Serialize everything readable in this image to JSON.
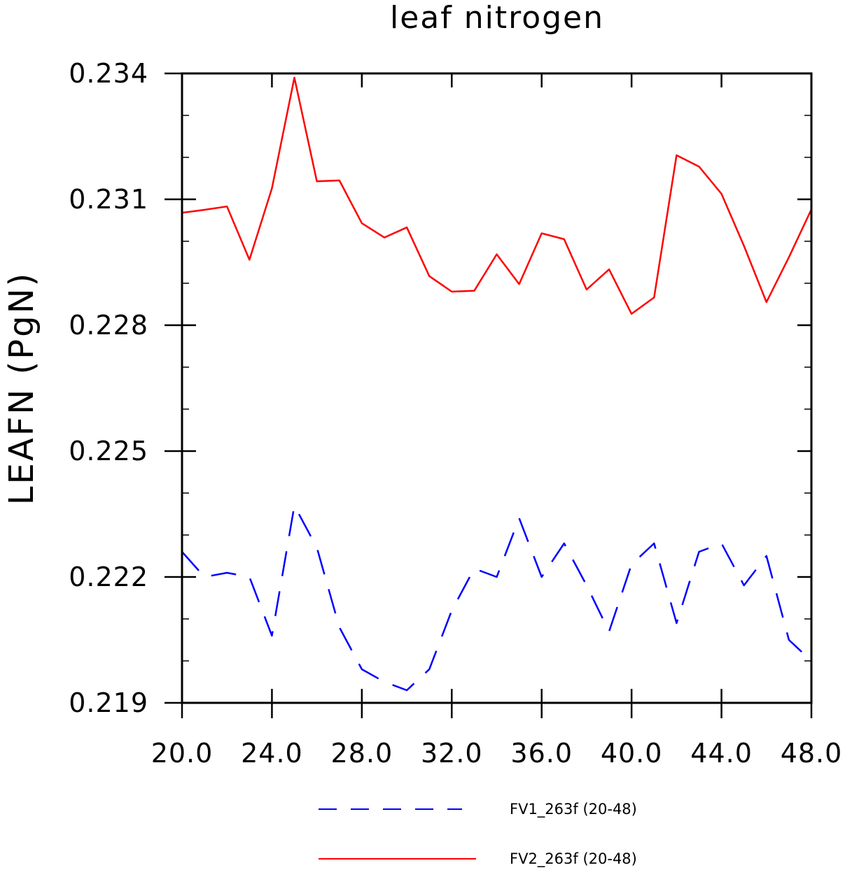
{
  "chart_data": {
    "type": "line",
    "title": "leaf nitrogen",
    "xlabel": "",
    "ylabel": "LEAFN  (PgN)",
    "xlim": [
      20,
      48
    ],
    "ylim": [
      0.219,
      0.234
    ],
    "x_ticks": [
      20,
      24,
      28,
      32,
      36,
      40,
      44,
      48
    ],
    "x_tick_labels": [
      "20.0",
      "24.0",
      "28.0",
      "32.0",
      "36.0",
      "40.0",
      "44.0",
      "48.0"
    ],
    "y_ticks": [
      0.219,
      0.222,
      0.225,
      0.228,
      0.231,
      0.234
    ],
    "y_tick_labels": [
      "0.219",
      "0.222",
      "0.225",
      "0.228",
      "0.231",
      "0.234"
    ],
    "grid": false,
    "legend_position": "bottom",
    "x": [
      20,
      21,
      22,
      23,
      24,
      25,
      26,
      27,
      28,
      29,
      30,
      31,
      32,
      33,
      34,
      35,
      36,
      37,
      38,
      39,
      40,
      41,
      42,
      43,
      44,
      45,
      46,
      47,
      48
    ],
    "series": [
      {
        "name": "FV1_263f (20-48)",
        "color": "#0000ff",
        "dash": "dashed",
        "values": [
          0.2226,
          0.222,
          0.2221,
          0.222,
          0.2206,
          0.2237,
          0.2227,
          0.2208,
          0.2198,
          0.2195,
          0.2193,
          0.2198,
          0.2212,
          0.2222,
          0.222,
          0.2234,
          0.222,
          0.2228,
          0.2218,
          0.2207,
          0.2223,
          0.2228,
          0.2209,
          0.2226,
          0.2228,
          0.2218,
          0.2225,
          0.2205,
          0.22
        ]
      },
      {
        "name": "FV2_263f (20-48)",
        "color": "#ff0000",
        "dash": "solid",
        "values": [
          0.23068,
          0.23075,
          0.23083,
          0.22956,
          0.23126,
          0.2339,
          0.23143,
          0.23145,
          0.23043,
          0.23009,
          0.23033,
          0.22917,
          0.2288,
          0.22882,
          0.22969,
          0.22898,
          0.23019,
          0.23005,
          0.22885,
          0.22933,
          0.22827,
          0.22866,
          0.23205,
          0.23178,
          0.23113,
          0.22989,
          0.22855,
          0.22962,
          0.23076
        ]
      }
    ]
  }
}
